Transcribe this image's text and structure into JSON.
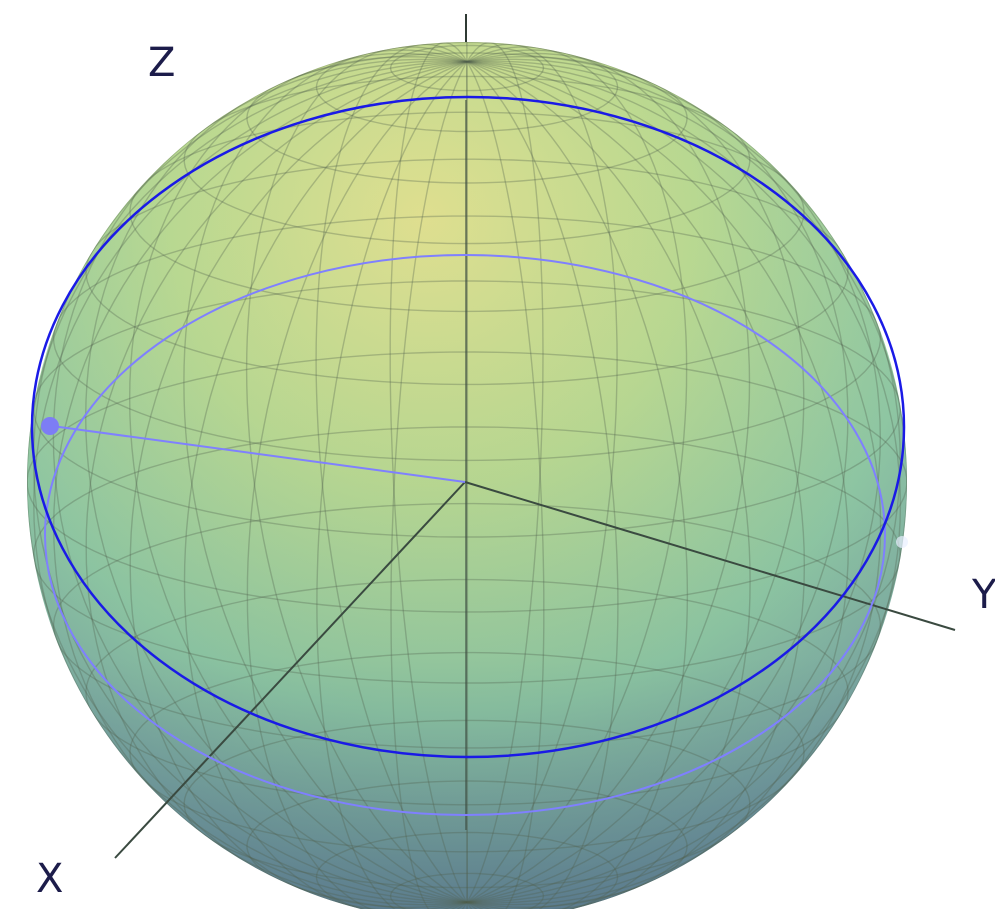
{
  "axes": {
    "x_label": "X",
    "y_label": "Y",
    "z_label": "Z"
  },
  "colors": {
    "sphere_top": "#dede8c",
    "sphere_mid": "#9ccf9e",
    "sphere_bottom": "#6f8fa0",
    "grid": "#51614f",
    "axis": "#3a4a40",
    "great_circle": "#1a1ae6",
    "light_circle": "#7f80ff",
    "state_point": "#7d7df5",
    "label": "#1c1c4a"
  }
}
